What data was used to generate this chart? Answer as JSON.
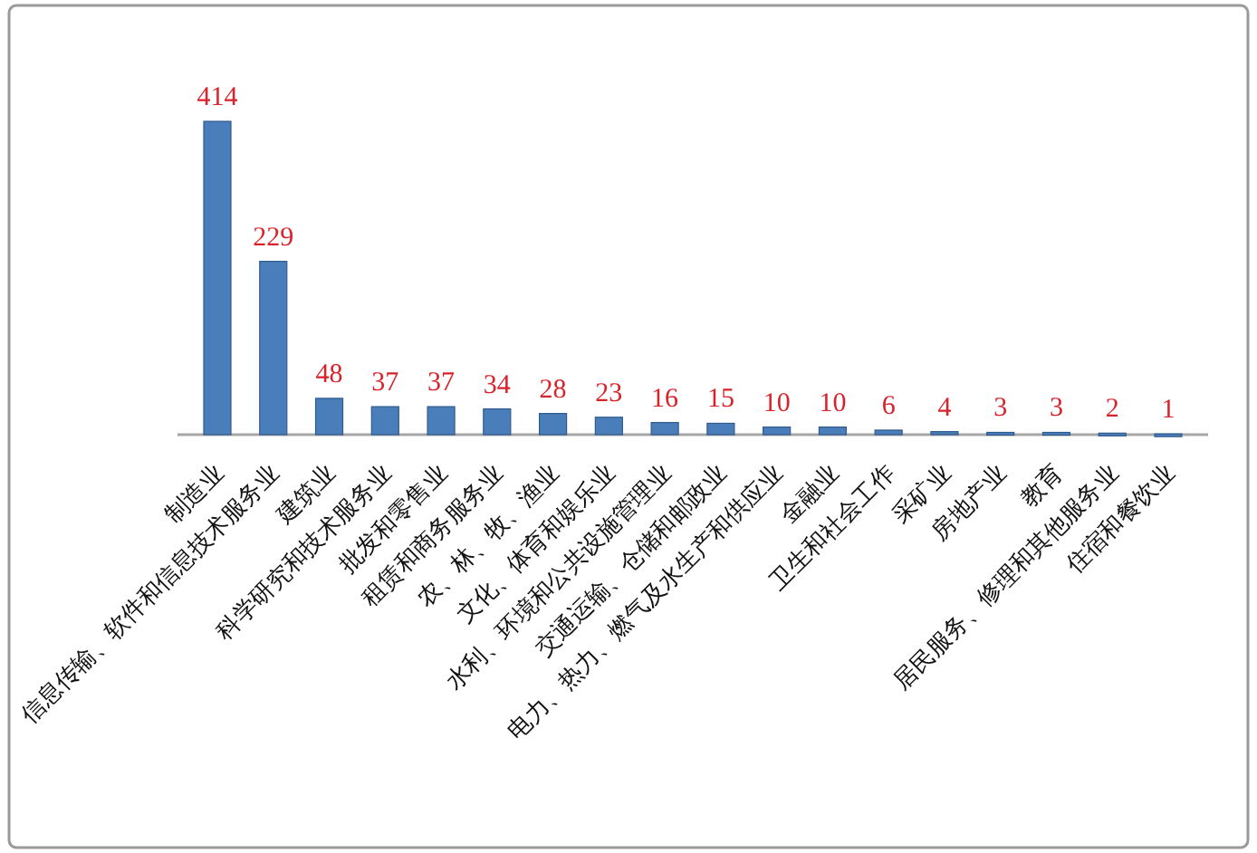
{
  "chart_data": {
    "type": "bar",
    "categories": [
      "制造业",
      "信息传输、软件和信息技术服务业",
      "建筑业",
      "科学研究和技术服务业",
      "批发和零售业",
      "租赁和商务服务业",
      "农、林、牧、渔业",
      "文化、体育和娱乐业",
      "水利、环境和公共设施管理业",
      "交通运输、仓储和邮政业",
      "电力、热力、燃气及水生产和供应业",
      "金融业",
      "卫生和社会工作",
      "采矿业",
      "房地产业",
      "教育",
      "居民服务、修理和其他服务业",
      "住宿和餐饮业"
    ],
    "values": [
      414,
      229,
      48,
      37,
      37,
      34,
      28,
      23,
      16,
      15,
      10,
      10,
      6,
      4,
      3,
      3,
      2,
      1
    ],
    "color": "#4a7ebb",
    "data_labels": true
  }
}
